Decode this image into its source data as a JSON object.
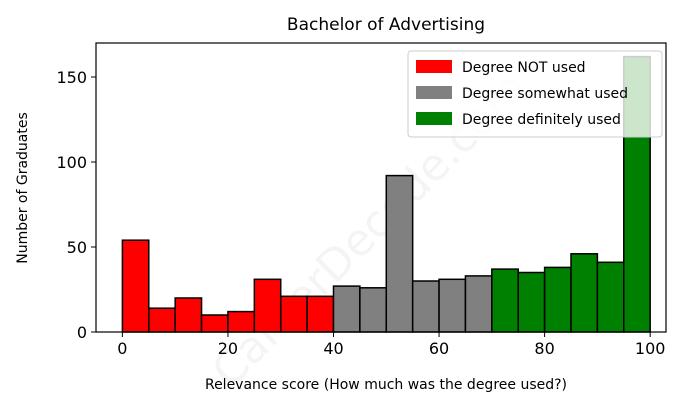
{
  "chart_data": {
    "type": "bar",
    "title": "Bachelor of Advertising",
    "xlabel": "Relevance score (How much was the degree used?)",
    "ylabel": "Number of Graduates",
    "xlim": [
      -5,
      103
    ],
    "ylim": [
      0,
      170
    ],
    "xticks": [
      0,
      20,
      40,
      60,
      80,
      100
    ],
    "yticks": [
      0,
      50,
      100,
      150
    ],
    "bin_width": 5,
    "bin_starts": [
      0,
      5,
      10,
      15,
      20,
      25,
      30,
      35,
      40,
      45,
      50,
      55,
      60,
      65,
      70,
      75,
      80,
      85,
      90,
      95
    ],
    "values": [
      54,
      14,
      20,
      10,
      12,
      31,
      21,
      21,
      27,
      26,
      92,
      30,
      31,
      33,
      37,
      35,
      38,
      46,
      41,
      162
    ],
    "series": [
      {
        "name": "Degree NOT used",
        "color": "#ff0000",
        "range": [
          0,
          40
        ]
      },
      {
        "name": "Degree somewhat used",
        "color": "#808080",
        "range": [
          40,
          70
        ]
      },
      {
        "name": "Degree definitely used",
        "color": "#008000",
        "range": [
          70,
          100
        ]
      }
    ],
    "legend_position": "top-right",
    "grid": false
  },
  "watermark": "CareerDecode.com"
}
